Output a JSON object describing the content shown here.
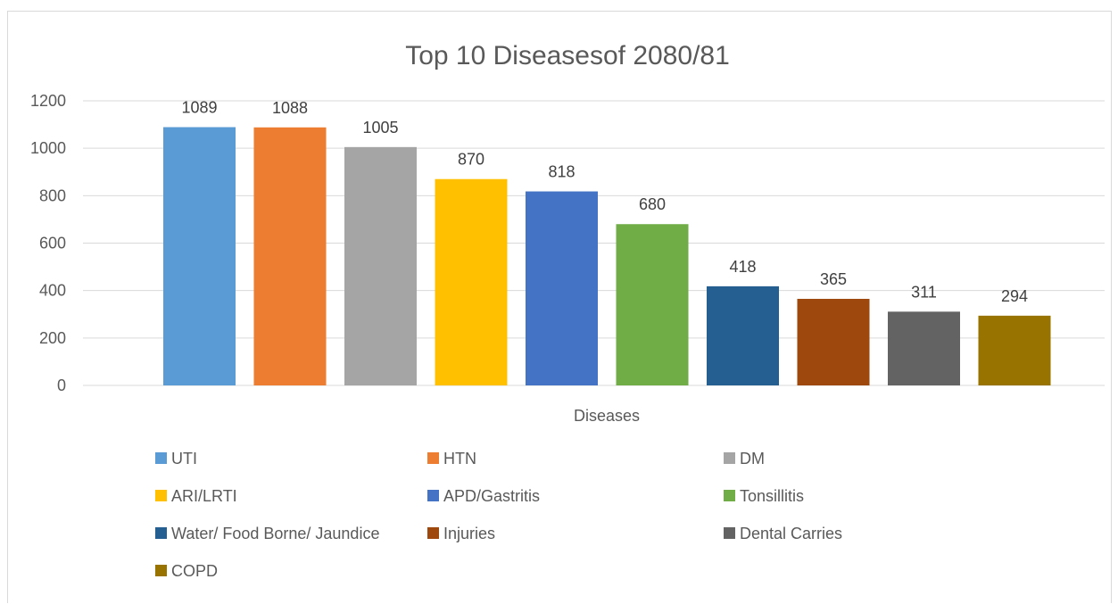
{
  "chart_data": {
    "type": "bar",
    "title": "Top 10 Diseasesof 2080/81",
    "xlabel": "Diseases",
    "ylabel": "",
    "ylim": [
      0,
      1200
    ],
    "yticks": [
      0,
      200,
      400,
      600,
      800,
      1000,
      1200
    ],
    "grid": true,
    "legend_position": "bottom",
    "categories": [
      ""
    ],
    "series": [
      {
        "name": "UTI",
        "value": 1089,
        "color": "#5B9BD5"
      },
      {
        "name": "HTN",
        "value": 1088,
        "color": "#ED7D31"
      },
      {
        "name": "DM",
        "value": 1005,
        "color": "#A5A5A5"
      },
      {
        "name": "ARI/LRTI",
        "value": 870,
        "color": "#FFC000"
      },
      {
        "name": "APD/Gastritis",
        "value": 818,
        "color": "#4472C4"
      },
      {
        "name": "Tonsillitis",
        "value": 680,
        "color": "#70AD47"
      },
      {
        "name": "Water/ Food Borne/ Jaundice",
        "value": 418,
        "color": "#255E91"
      },
      {
        "name": "Injuries",
        "value": 365,
        "color": "#9E480E"
      },
      {
        "name": "Dental Carries",
        "value": 311,
        "color": "#636363"
      },
      {
        "name": "COPD",
        "value": 294,
        "color": "#997300"
      }
    ]
  }
}
